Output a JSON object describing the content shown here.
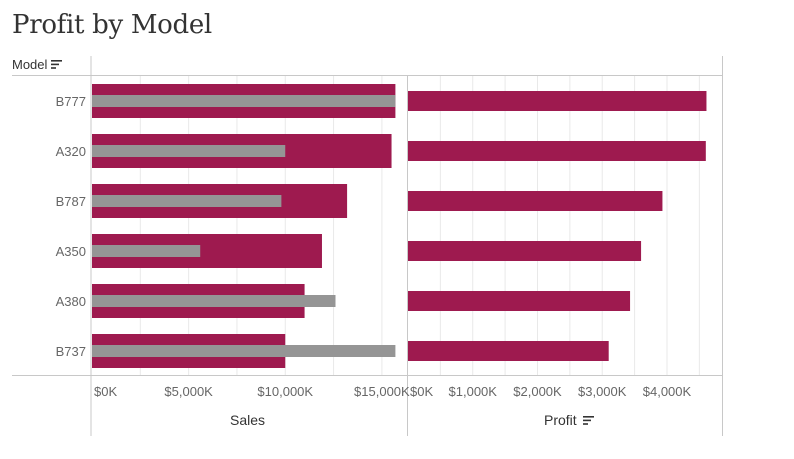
{
  "title": "Profit by Model",
  "row_header": {
    "label": "Model",
    "sort_icon": "sort-descending-icon"
  },
  "colors": {
    "bar_primary": "#9e1a4f",
    "bar_secondary": "#959595",
    "gridline": "#e9e9e9",
    "divider": "#c8c8c8",
    "label": "#666666"
  },
  "chart_data": [
    {
      "type": "bar",
      "orientation": "horizontal",
      "categories": [
        "B777",
        "A320",
        "B787",
        "A350",
        "A380",
        "B737"
      ],
      "series": [
        {
          "values": [
            15700,
            15500,
            13200,
            11900,
            11000,
            10000
          ],
          "color": "#9e1a4f"
        },
        {
          "values": [
            15700,
            10000,
            9800,
            5600,
            12600,
            15700
          ],
          "color": "#959595"
        }
      ],
      "xlabel": "Sales",
      "xlim": [
        0,
        16300
      ],
      "xticks": [
        0,
        5000,
        10000,
        15000
      ],
      "xtick_labels": [
        "$0K",
        "$5,000K",
        "$10,000K",
        "$15,000K"
      ],
      "grid": true
    },
    {
      "type": "bar",
      "orientation": "horizontal",
      "categories": [
        "B777",
        "A320",
        "B787",
        "A350",
        "A380",
        "B737"
      ],
      "series": [
        {
          "values": [
            4610,
            4600,
            3930,
            3600,
            3430,
            3100
          ],
          "color": "#9e1a4f"
        }
      ],
      "xlabel": "Profit",
      "xlabel_sort_icon": "sort-descending-icon",
      "xlim": [
        0,
        4850
      ],
      "xticks": [
        0,
        1000,
        2000,
        3000,
        4000
      ],
      "xtick_labels": [
        "$0K",
        "$1,000K",
        "$2,000K",
        "$3,000K",
        "$4,000K"
      ],
      "grid": true
    }
  ]
}
